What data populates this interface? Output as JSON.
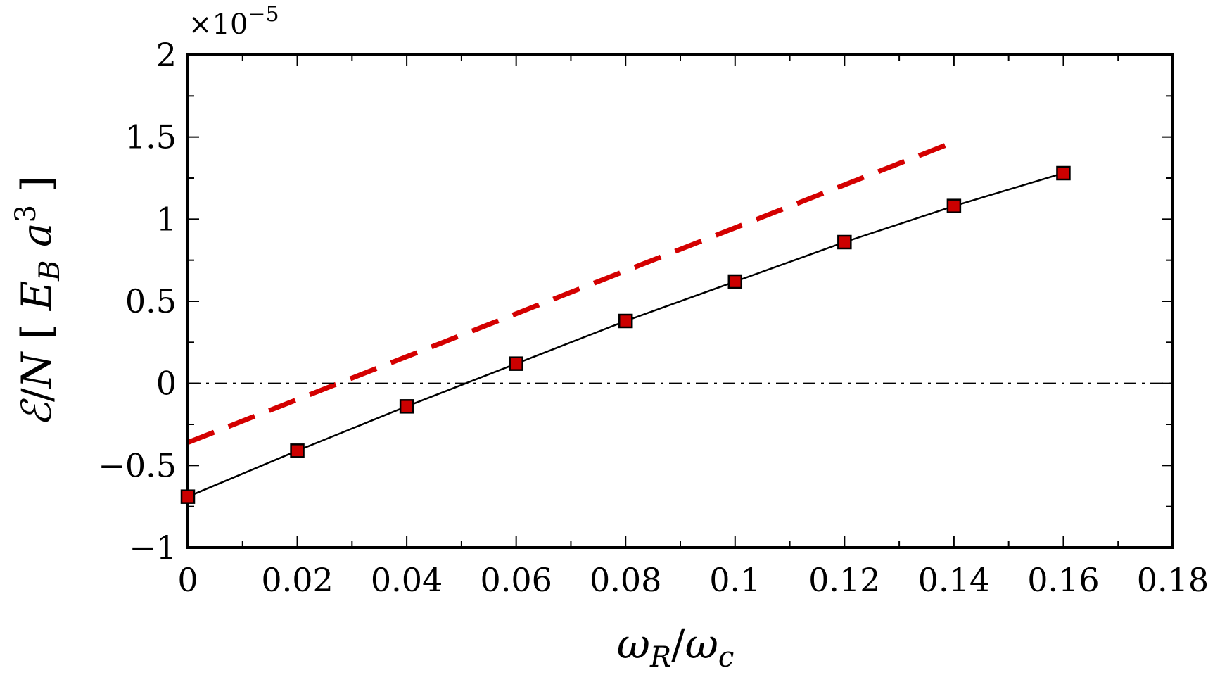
{
  "chart_data": {
    "type": "line",
    "xlabel": "ωR/ωc",
    "ylabel": "ℰ/N [EB a3]",
    "y_scale_multiplier": "×10−5",
    "xlim": [
      0,
      0.18
    ],
    "ylim": [
      -1,
      2
    ],
    "xticks": [
      "0",
      "0.02",
      "0.04",
      "0.06",
      "0.08",
      "0.1",
      "0.12",
      "0.14",
      "0.16",
      "0.18"
    ],
    "xtick_values": [
      0,
      0.02,
      0.04,
      0.06,
      0.08,
      0.1,
      0.12,
      0.14,
      0.16,
      0.18
    ],
    "yticks": [
      "−1",
      "−0.5",
      "0",
      "0.5",
      "1",
      "1.5",
      "2"
    ],
    "ytick_values": [
      -1,
      -0.5,
      0,
      0.5,
      1,
      1.5,
      2
    ],
    "grid": false,
    "legend": "none",
    "series": [
      {
        "style": "solid-with-square-markers",
        "line_color": "#000000",
        "marker_color": "#cc0000",
        "x": [
          0,
          0.02,
          0.04,
          0.06,
          0.08,
          0.1,
          0.12,
          0.14,
          0.16
        ],
        "y": [
          -0.69,
          -0.41,
          -0.14,
          0.12,
          0.38,
          0.62,
          0.86,
          1.08,
          1.28
        ]
      },
      {
        "style": "dashed",
        "line_color": "#d40000",
        "x": [
          0,
          0.14
        ],
        "y": [
          -0.36,
          1.47
        ]
      },
      {
        "style": "dash-dot",
        "line_color": "#000000",
        "x": [
          0,
          0.18
        ],
        "y": [
          0,
          0
        ]
      }
    ]
  }
}
